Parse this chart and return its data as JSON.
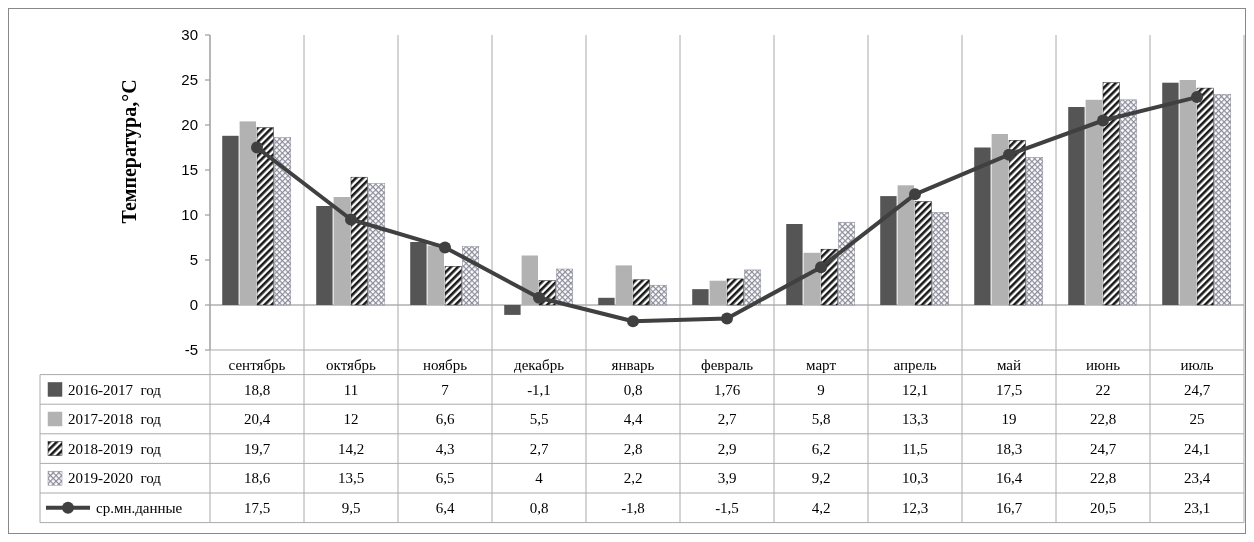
{
  "chart_data": {
    "type": "bar",
    "ylabel": "Температура,°C",
    "categories": [
      "сентябрь",
      "октябрь",
      "ноябрь",
      "декабрь",
      "январь",
      "февраль",
      "март",
      "апрель",
      "май",
      "июнь",
      "июль"
    ],
    "ylim": [
      -5,
      30
    ],
    "yticks": [
      -5,
      0,
      5,
      10,
      15,
      20,
      25,
      30
    ],
    "legend": "bottom",
    "marker": "circle",
    "series": [
      {
        "name": "2016-2017  год",
        "color": "#555555",
        "values": [
          18.8,
          11,
          7,
          -1.1,
          0.8,
          1.76,
          9,
          12.1,
          17.5,
          22,
          24.7
        ],
        "value_labels": [
          "18,8",
          "11",
          "7",
          "-1,1",
          "0,8",
          "1,76",
          "9",
          "12,1",
          "17,5",
          "22",
          "24,7"
        ]
      },
      {
        "name": "2017-2018  год",
        "color": "#b2b2b2",
        "values": [
          20.4,
          12,
          6.6,
          5.5,
          4.4,
          2.7,
          5.8,
          13.3,
          19,
          22.8,
          25
        ],
        "value_labels": [
          "20,4",
          "12",
          "6,6",
          "5,5",
          "4,4",
          "2,7",
          "5,8",
          "13,3",
          "19",
          "22,8",
          "25"
        ]
      },
      {
        "name": "2018-2019  год",
        "color": "#1a1a1a",
        "values": [
          19.7,
          14.2,
          4.3,
          2.7,
          2.8,
          2.9,
          6.2,
          11.5,
          18.3,
          24.7,
          24.1
        ],
        "value_labels": [
          "19,7",
          "14,2",
          "4,3",
          "2,7",
          "2,8",
          "2,9",
          "6,2",
          "11,5",
          "18,3",
          "24,7",
          "24,1"
        ]
      },
      {
        "name": "2019-2020  год",
        "color": "#8a8a9a",
        "values": [
          18.6,
          13.5,
          6.5,
          4,
          2.2,
          3.9,
          9.2,
          10.3,
          16.4,
          22.8,
          23.4
        ],
        "value_labels": [
          "18,6",
          "13,5",
          "6,5",
          "4",
          "2,2",
          "3,9",
          "9,2",
          "10,3",
          "16,4",
          "22,8",
          "23,4"
        ]
      },
      {
        "name": "ср.мн.данные",
        "type": "line",
        "color": "#404040",
        "values": [
          17.5,
          9.5,
          6.4,
          0.8,
          -1.8,
          -1.5,
          4.2,
          12.3,
          16.7,
          20.5,
          23.1
        ],
        "value_labels": [
          "17,5",
          "9,5",
          "6,4",
          "0,8",
          "-1,8",
          "-1,5",
          "4,2",
          "12,3",
          "16,7",
          "20,5",
          "23,1"
        ]
      }
    ]
  }
}
